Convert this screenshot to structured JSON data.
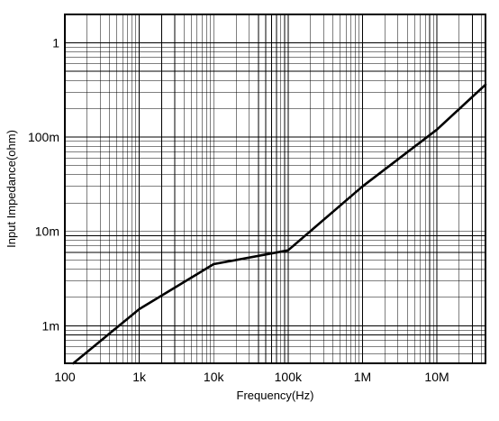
{
  "chart_data": {
    "type": "line",
    "title": "",
    "xlabel": "Frequency(Hz)",
    "ylabel": "Input Impedance(ohm)",
    "x_scale": "log",
    "y_scale": "log",
    "xlim": [
      100,
      45000000
    ],
    "ylim": [
      0.0004,
      2
    ],
    "grid": true,
    "x_ticks": [
      {
        "value": 100,
        "label": "100"
      },
      {
        "value": 1000,
        "label": "1k"
      },
      {
        "value": 10000,
        "label": "10k"
      },
      {
        "value": 100000,
        "label": "100k"
      },
      {
        "value": 1000000,
        "label": "1M"
      },
      {
        "value": 10000000,
        "label": "10M"
      }
    ],
    "y_ticks": [
      {
        "value": 0.001,
        "label": "1m"
      },
      {
        "value": 0.01,
        "label": "10m"
      },
      {
        "value": 0.1,
        "label": "100m"
      },
      {
        "value": 1,
        "label": "1"
      }
    ],
    "series": [
      {
        "x": [
          130,
          1000,
          10000,
          100000,
          1000000,
          10000000,
          45000000
        ],
        "y": [
          0.0004,
          0.0015,
          0.0045,
          0.0063,
          0.03,
          0.12,
          0.36
        ]
      }
    ],
    "colors": {
      "line": "#000000",
      "grid": "#000000",
      "background": "#ffffff"
    }
  }
}
